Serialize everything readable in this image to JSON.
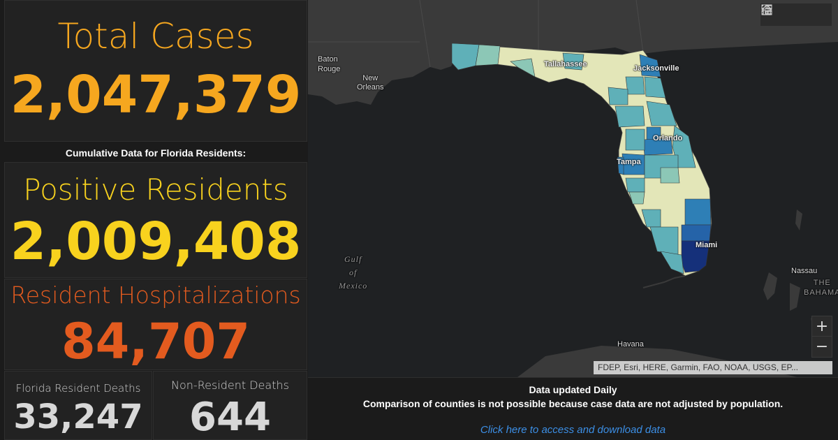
{
  "stats": {
    "total_cases": {
      "label": "Total Cases",
      "value": "2,047,379",
      "color": "#f6a71f"
    },
    "subheading": "Cumulative Data for Florida Residents:",
    "positive_residents": {
      "label": "Positive Residents",
      "value": "2,009,408",
      "color": "#f8d21e"
    },
    "resident_hospitalizations": {
      "label": "Resident Hospitalizations",
      "value": "84,707",
      "color": "#e35b1f"
    },
    "florida_resident_deaths": {
      "label": "Florida Resident Deaths",
      "value": "33,247"
    },
    "non_resident_deaths": {
      "label": "Non-Resident Deaths",
      "value": "644"
    }
  },
  "map": {
    "labels": {
      "baton_rouge": "Baton\nRouge",
      "new_orleans": "New\nOrleans",
      "tallahassee": "Tallahassee",
      "jacksonville": "Jacksonville",
      "orlando": "Orlando",
      "tampa": "Tampa",
      "miami": "Miami",
      "gulf_of_mexico": "Gulf\nof\nMexico",
      "havana": "Havana",
      "nassau": "Nassau",
      "bahamas": "THE\nBAHAMA"
    },
    "widgets": [
      "home-icon",
      "legend-icon",
      "basemap-gallery-icon"
    ],
    "zoom": {
      "in": "+",
      "out": "−"
    },
    "attribution": "FDEP, Esri, HERE, Garmin, FAO, NOAA, USGS, EP..."
  },
  "info": {
    "line1": "Data updated Daily",
    "line2": "Comparison of counties is not possible because case data are not adjusted by population.",
    "link": "Click here to access and download data"
  },
  "colors": {
    "land": "#3a3a3a",
    "water": "#1f2123",
    "county_low": "#e3e6b8",
    "county_mid": "#5fb0b8",
    "county_high": "#2563a8",
    "county_max": "#15307a"
  }
}
